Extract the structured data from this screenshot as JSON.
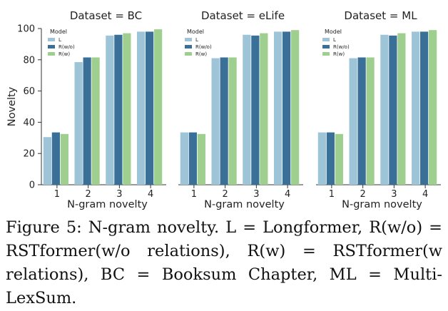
{
  "chart_data": {
    "type": "bar",
    "ylabel": "Novelty",
    "xlabel": "N-gram novelty",
    "ylim": [
      0,
      100
    ],
    "yticks": [
      0,
      20,
      40,
      60,
      80,
      100
    ],
    "categories": [
      "1",
      "2",
      "3",
      "4"
    ],
    "legend_title": "Model",
    "legend_placement": "top-left",
    "grid": false,
    "colors": [
      "#9ec4d8",
      "#3a6f98",
      "#9fcf8f"
    ],
    "panels": [
      {
        "title": "Dataset = BC",
        "series": [
          {
            "name": "L",
            "values": [
              30.5,
              78.5,
              95.5,
              98
            ]
          },
          {
            "name": "R(w/o)",
            "values": [
              33.5,
              81.5,
              96,
              98
            ]
          },
          {
            "name": "R(w)",
            "values": [
              32.5,
              81.5,
              97,
              99.5
            ]
          }
        ]
      },
      {
        "title": "Dataset = eLife",
        "series": [
          {
            "name": "L",
            "values": [
              33.5,
              81,
              96,
              98
            ]
          },
          {
            "name": "R(w/o)",
            "values": [
              33.5,
              81.5,
              95.5,
              98
            ]
          },
          {
            "name": "R(w)",
            "values": [
              32.5,
              81.5,
              97,
              99
            ]
          }
        ]
      },
      {
        "title": "Dataset = ML",
        "series": [
          {
            "name": "L",
            "values": [
              33.5,
              81,
              96,
              98
            ]
          },
          {
            "name": "R(w/o)",
            "values": [
              33.5,
              81.5,
              95.5,
              98
            ]
          },
          {
            "name": "R(w)",
            "values": [
              32.5,
              81.5,
              97,
              99
            ]
          }
        ]
      }
    ]
  },
  "caption": "Figure 5: N-gram novelty. L = Longformer, R(w/o) = RSTformer(w/o relations), R(w) = RSTformer(w relations), BC = Booksum Chapter, ML = Multi-LexSum."
}
